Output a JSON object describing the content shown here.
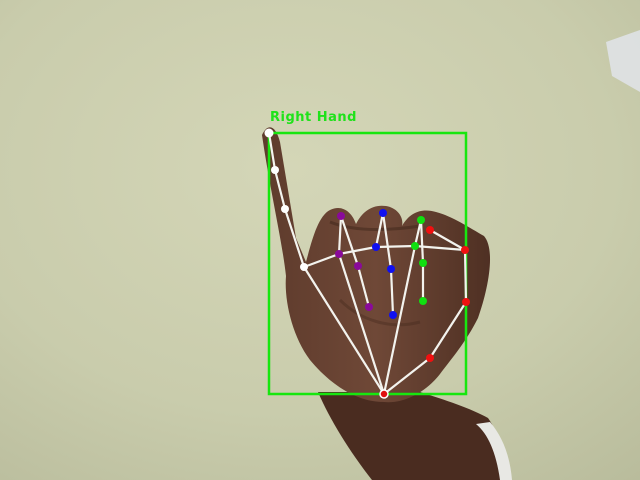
{
  "detection": {
    "label": "Right Hand",
    "box_color": "#17e60f",
    "label_color": "#1fe21a",
    "skeleton_color": "#f3f3ee"
  },
  "finger_colors": {
    "wrist": "#e01010",
    "thumb": "#ffffff",
    "index": "#8a0a9a",
    "middle": "#1010f0",
    "ring": "#10e010",
    "pinky": "#f01010"
  }
}
